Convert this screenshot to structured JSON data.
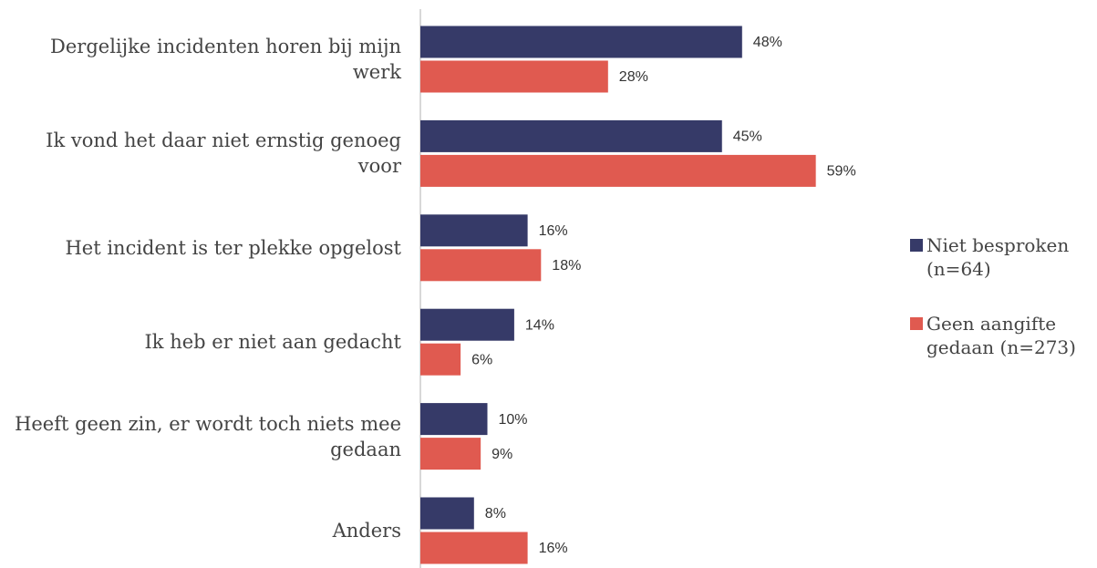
{
  "chart_data": {
    "type": "barh",
    "categories": [
      "Dergelijke incidenten horen bij mijn werk",
      "Ik vond het daar niet ernstig genoeg voor",
      "Het incident is ter plekke opgelost",
      "Ik heb er niet aan gedacht",
      "Heeft geen zin, er wordt toch niets mee gedaan",
      "Anders"
    ],
    "series": [
      {
        "name": "Niet besproken (n=64)",
        "color": "#363a68",
        "values": [
          48,
          45,
          16,
          14,
          10,
          8
        ],
        "value_labels": [
          "48%",
          "45%",
          "16%",
          "14%",
          "10%",
          "8%"
        ]
      },
      {
        "name": "Geen aangifte gedaan (n=273)",
        "color": "#e05a50",
        "values": [
          28,
          59,
          18,
          6,
          9,
          16
        ],
        "value_labels": [
          "28%",
          "59%",
          "18%",
          "6%",
          "9%",
          "16%"
        ]
      }
    ],
    "xlim": [
      0,
      60
    ],
    "legend": "right"
  }
}
